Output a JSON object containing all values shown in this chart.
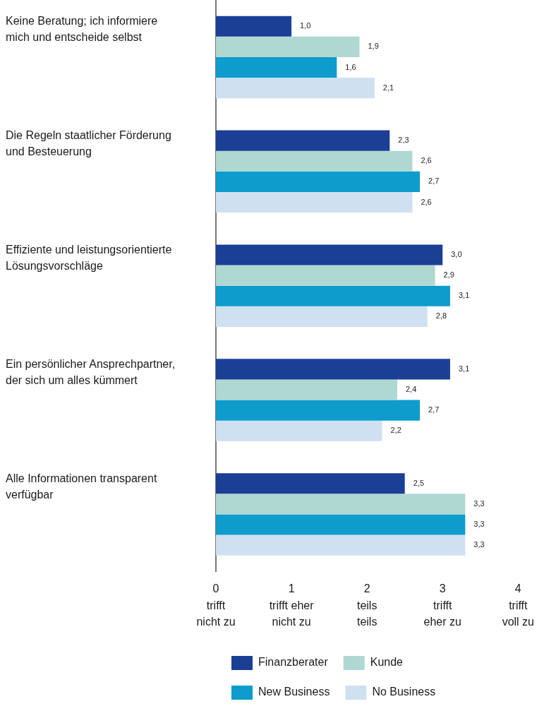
{
  "chart_data": {
    "type": "bar",
    "orientation": "horizontal",
    "categories": [
      "Keine Beratung; ich informiere\nmich und entscheide selbst",
      "Die Regeln staatlicher Förderung\nund Besteuerung",
      "Effiziente und leistungsorientierte\nLösungsvorschläge",
      "Ein persönlicher Ansprechpartner,\nder sich um alles kümmert",
      "Alle Informationen transparent\nverfügbar"
    ],
    "series": [
      {
        "name": "Finanzberater",
        "color": "#1a3f95",
        "values": [
          1.0,
          2.3,
          3.0,
          3.1,
          2.5
        ],
        "value_labels": [
          "1,0",
          "2,3",
          "3,0",
          "3,1",
          "2,5"
        ]
      },
      {
        "name": "Kunde",
        "color": "#afd8d3",
        "values": [
          1.9,
          2.6,
          2.9,
          2.4,
          3.3
        ],
        "value_labels": [
          "1,9",
          "2,6",
          "2,9",
          "2,4",
          "3,3"
        ]
      },
      {
        "name": "New Business",
        "color": "#0d9ccc",
        "values": [
          1.6,
          2.7,
          3.1,
          2.7,
          3.3
        ],
        "value_labels": [
          "1,6",
          "2,7",
          "3,1",
          "2,7",
          "3,3"
        ]
      },
      {
        "name": "No Business",
        "color": "#cfe0f1",
        "values": [
          2.1,
          2.6,
          2.8,
          2.2,
          3.3
        ],
        "value_labels": [
          "2,1",
          "2,6",
          "2,8",
          "2,2",
          "3,3"
        ]
      }
    ],
    "xlim": [
      0,
      4
    ],
    "xticks": [
      {
        "value": 0,
        "label": "0\ntrifft\nnicht zu"
      },
      {
        "value": 1,
        "label": "1\ntrifft eher\nnicht zu"
      },
      {
        "value": 2,
        "label": "2\nteils\nteils"
      },
      {
        "value": 3,
        "label": "3\ntrifft\neher zu"
      },
      {
        "value": 4,
        "label": "4\ntrifft\nvoll zu"
      }
    ],
    "legend": "bottom"
  }
}
